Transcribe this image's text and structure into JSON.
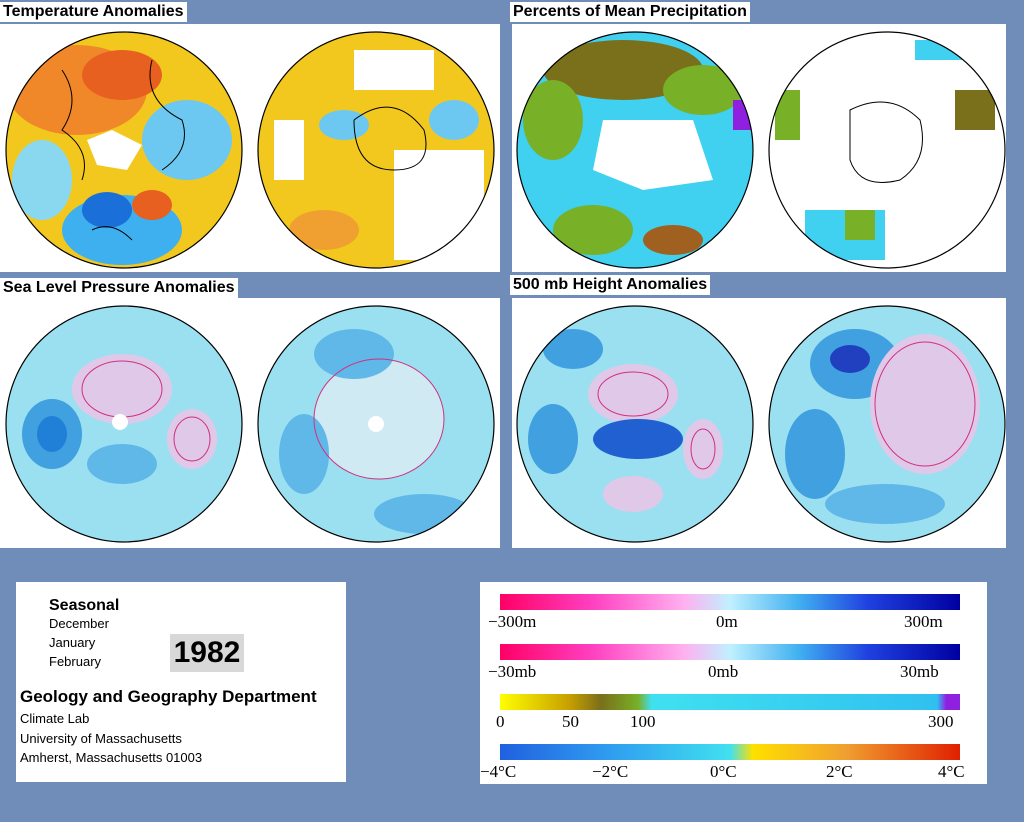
{
  "panels": {
    "temperature": "Temperature Anomalies",
    "precipitation": "Percents of Mean Precipitation",
    "slp": "Sea Level Pressure Anomalies",
    "height500": "500 mb Height Anomalies"
  },
  "info": {
    "heading": "Seasonal",
    "months": [
      "December",
      "January",
      "February"
    ],
    "year": "1982",
    "department": "Geology and Geography Department",
    "lines": [
      "Climate Lab",
      "University of Massachusetts",
      "Amherst, Massachusetts 01003"
    ]
  },
  "legend": {
    "height_ticks": [
      "−300m",
      "0m",
      "300m"
    ],
    "pressure_ticks": [
      "−30mb",
      "0mb",
      "30mb"
    ],
    "precip_ticks": [
      "0",
      "50",
      "100",
      "300"
    ],
    "temp_ticks": [
      "−4°C",
      "−2°C",
      "0°C",
      "2°C",
      "4°C"
    ]
  },
  "colors": {
    "background": "#6f8db8",
    "temp_warm": "#f08030",
    "temp_cool": "#3fb0ef",
    "precip_dry": "#7a6f1a",
    "pressure_low": "#e0c8e8",
    "pressure_high": "#40a0e0"
  }
}
